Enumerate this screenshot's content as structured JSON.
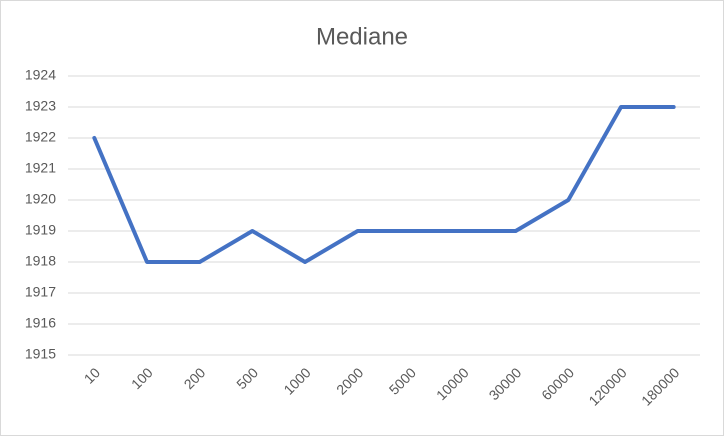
{
  "chart_data": {
    "type": "line",
    "title": "Mediane",
    "categories": [
      "10",
      "100",
      "200",
      "500",
      "1000",
      "2000",
      "5000",
      "10000",
      "30000",
      "60000",
      "120000",
      "180000"
    ],
    "values": [
      1922,
      1918,
      1918,
      1919,
      1918,
      1919,
      1919,
      1919,
      1919,
      1920,
      1923,
      1923
    ],
    "color": "#4472c4",
    "ylim": [
      1915,
      1924
    ],
    "yticks": [
      1915,
      1916,
      1917,
      1918,
      1919,
      1920,
      1921,
      1922,
      1923,
      1924
    ],
    "grid": true
  }
}
